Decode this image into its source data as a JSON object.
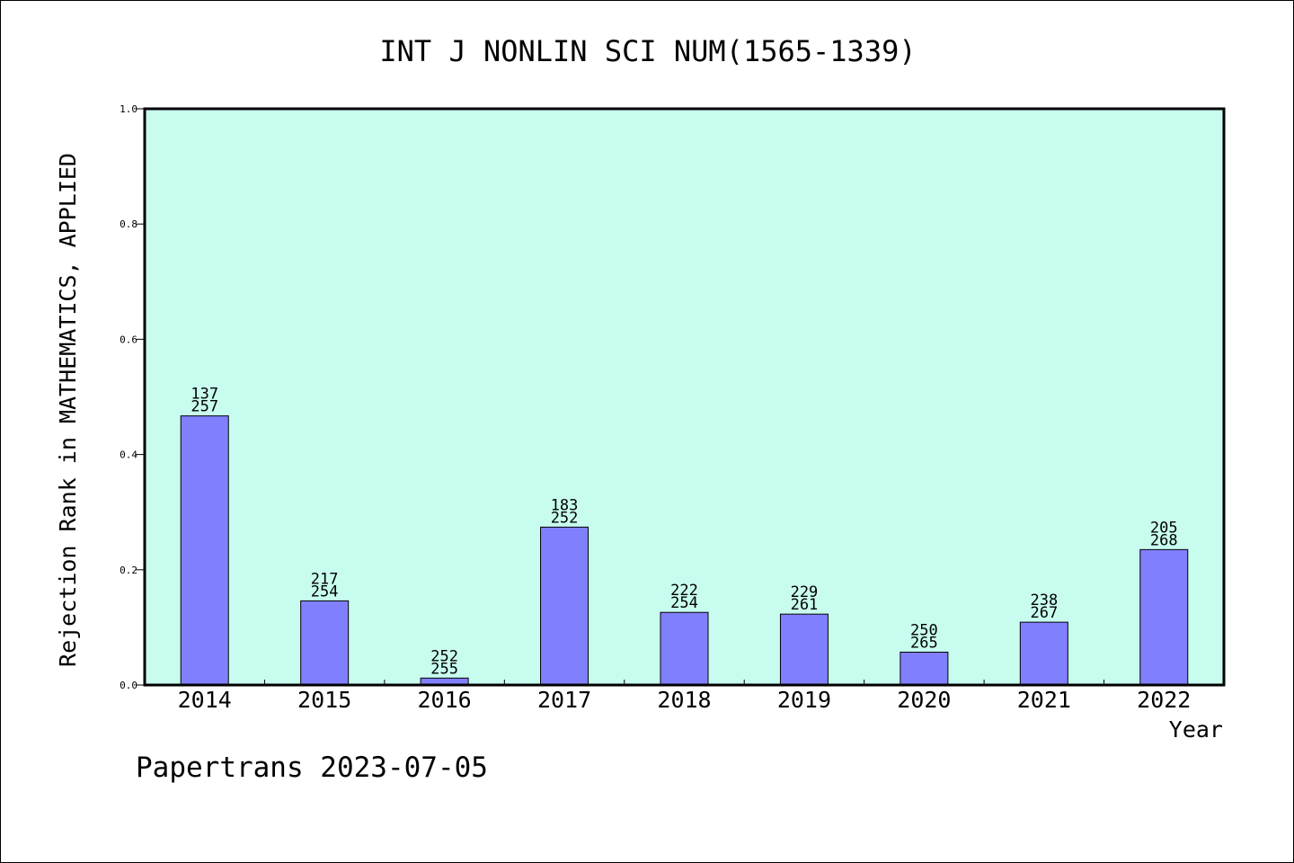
{
  "chart_data": {
    "type": "bar",
    "title": "INT J NONLIN SCI NUM(1565-1339)",
    "xlabel": "Year",
    "ylabel": "Rejection Rank in MATHEMATICS, APPLIED",
    "ylim": [
      0,
      1.0
    ],
    "yticks": [
      "0.0",
      "0.2",
      "0.4",
      "0.6",
      "0.8",
      "1.0"
    ],
    "categories": [
      "2014",
      "2015",
      "2016",
      "2017",
      "2018",
      "2019",
      "2020",
      "2021",
      "2022"
    ],
    "values": [
      0.467,
      0.146,
      0.012,
      0.274,
      0.126,
      0.123,
      0.057,
      0.109,
      0.235
    ],
    "labels_top": [
      "137",
      "217",
      "252",
      "183",
      "222",
      "229",
      "250",
      "238",
      "205"
    ],
    "labels_bottom": [
      "257",
      "254",
      "255",
      "252",
      "254",
      "261",
      "265",
      "267",
      "268"
    ],
    "bar_color": "#8080ff",
    "plot_background": "#c8fcef",
    "grid": false,
    "legend": "none"
  },
  "footer": "Papertrans 2023-07-05"
}
